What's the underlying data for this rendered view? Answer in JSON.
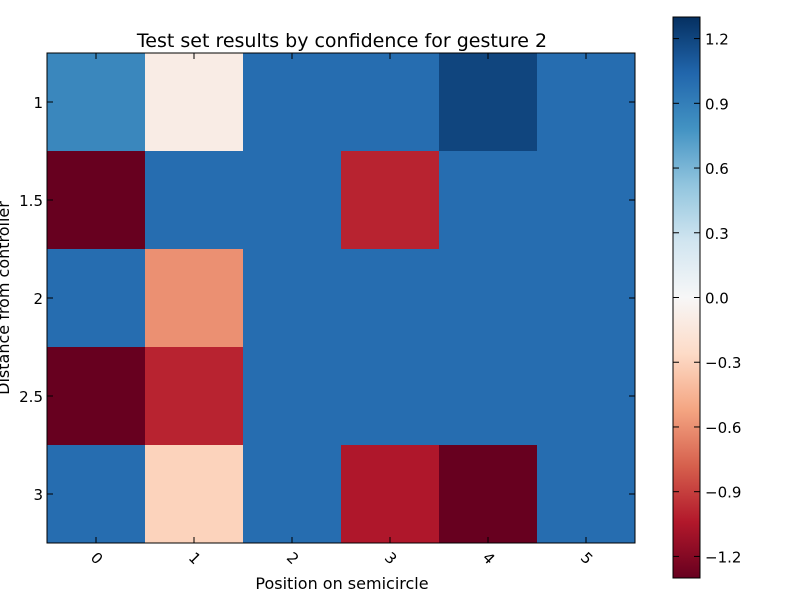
{
  "chart_data": {
    "type": "heatmap",
    "title": "Test set results by confidence for gesture 2",
    "xlabel": "Position on semicircle",
    "ylabel": "Distance from controller",
    "x_categories": [
      "0",
      "1",
      "2",
      "3",
      "4",
      "5"
    ],
    "y_categories": [
      "1",
      "1.5",
      "2",
      "2.5",
      "3"
    ],
    "values": [
      [
        0.85,
        -0.1,
        1.0,
        1.0,
        1.2,
        1.0
      ],
      [
        -1.3,
        1.0,
        1.0,
        -1.0,
        1.0,
        1.0
      ],
      [
        1.0,
        -0.6,
        1.0,
        1.0,
        1.0,
        1.0
      ],
      [
        -1.3,
        -1.0,
        1.0,
        1.0,
        1.0,
        1.0
      ],
      [
        1.0,
        -0.3,
        1.0,
        -1.05,
        -1.3,
        1.0
      ]
    ],
    "colormap": "RdBu",
    "vmin": -1.3,
    "vmax": 1.3,
    "colorbar_ticks": [
      "1.2",
      "0.9",
      "0.6",
      "0.3",
      "0.0",
      "−0.3",
      "−0.6",
      "−0.9",
      "−1.2"
    ],
    "colorbar_tick_values": [
      1.2,
      0.9,
      0.6,
      0.3,
      0.0,
      -0.3,
      -0.6,
      -0.9,
      -1.2
    ],
    "grid": false
  }
}
